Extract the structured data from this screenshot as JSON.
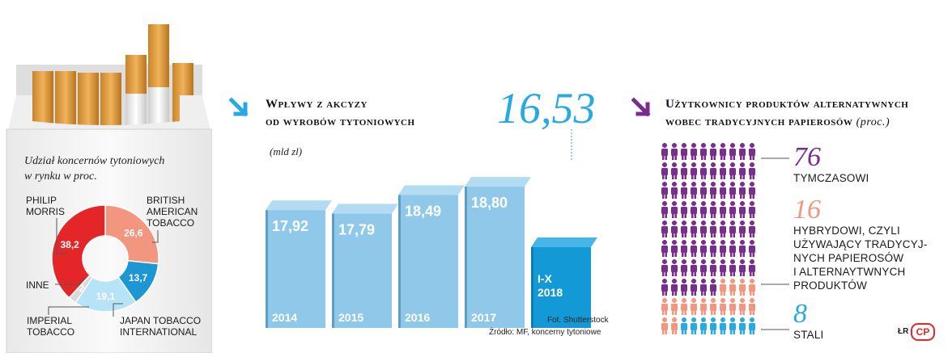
{
  "pack": {
    "caption_line1": "Udział koncernów tytoniowych",
    "caption_line2": "w rynku w proc."
  },
  "market_share": {
    "type": "pie",
    "slices": [
      {
        "name": "PHILIP MORRIS",
        "value": 38.2,
        "label": "38,2",
        "color": "#e52629"
      },
      {
        "name": "BRITISH AMERICAN TOBACCO",
        "value": 26.6,
        "label": "26,6",
        "color": "#f29680"
      },
      {
        "name": "JAPAN TOBACCO INTERNATIONAL",
        "value": 13.7,
        "label": "13,7",
        "color": "#1d96d3"
      },
      {
        "name": "IMPERIAL TOBACCO",
        "value": 19.1,
        "label": "19,1",
        "color": "#b7e3f7"
      },
      {
        "name": "INNE",
        "value": 2.4,
        "label": "2",
        "color": "#d9d9d9"
      }
    ],
    "labels": {
      "pm_1": "PHILIP",
      "pm_2": "MORRIS",
      "bat_1": "BRITISH",
      "bat_2": "AMERICAN",
      "bat_3": "TOBACCO",
      "inne": "INNE",
      "imp_1": "IMPERIAL",
      "imp_2": "TOBACCO",
      "jti_1": "JAPAN TOBACCO",
      "jti_2": "INTERNATIONAL"
    }
  },
  "excise": {
    "title_line1": "Wpływy z akcyzy",
    "title_line2": "od wyrobów tytoniowych",
    "unit": "(mld zl)",
    "highlight": "16,53",
    "source_1": "Fot. Shutterstock",
    "source_2": "Źródło: MF, koncerny tytoniowe"
  },
  "chart_data": {
    "type": "bar",
    "title": "Wpływy z akcyzy od wyrobów tytoniowych",
    "ylabel": "(mld zl)",
    "categories": [
      "2014",
      "2015",
      "2016",
      "2017",
      "I-X 2018"
    ],
    "values": [
      17.92,
      17.79,
      18.49,
      18.8,
      16.53
    ],
    "value_labels": [
      "17,92",
      "17,79",
      "18,49",
      "18,80",
      "16,53"
    ],
    "colors": {
      "bar": "#8fc8e8",
      "highlight_bar": "#139ad6"
    }
  },
  "users": {
    "title_line1": "Użytkownicy produktów alternatywnych",
    "title_line2": "wobec tradycyjnych papierosów",
    "title_suffix": "(proc.)",
    "groups": [
      {
        "value": 76,
        "label_lines": [
          "TYMCZASOWI"
        ],
        "color": "#7b2d8e"
      },
      {
        "value": 16,
        "label_lines": [
          "HYBRYDOWI, CZYLI",
          "UŻYWAJĄCY TRADYCYJ-",
          "NYCH PAPIEROSÓW",
          "I ALTERNAYTWNYCH",
          "PRODUKTÓW"
        ],
        "color": "#f29680"
      },
      {
        "value": 8,
        "label_lines": [
          "STALI"
        ],
        "color": "#29a9e1"
      }
    ],
    "credit": "ŁR",
    "logo_text": "CP"
  }
}
